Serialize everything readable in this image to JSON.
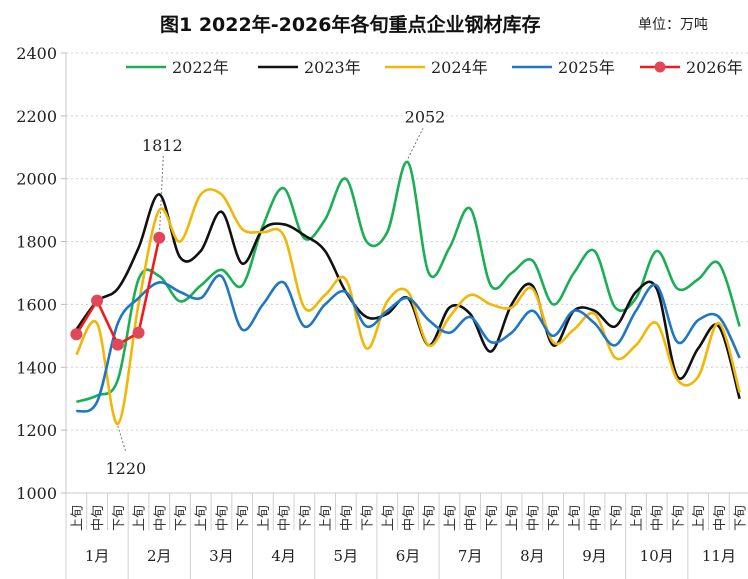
{
  "chart_data": {
    "type": "line",
    "title": "图1  2022年-2026年各旬重点企业钢材库存",
    "unit_label": "单位：万吨",
    "xlabel": "",
    "ylabel": "",
    "ylim": [
      1000,
      2400
    ],
    "yticks": [
      "1000",
      "1200",
      "1400",
      "1600",
      "1800",
      "2000",
      "2200",
      "2400"
    ],
    "grid": true,
    "legend_position": "top",
    "months": [
      "1月",
      "2月",
      "3月",
      "4月",
      "5月",
      "6月",
      "7月",
      "8月",
      "9月",
      "10月",
      "11月"
    ],
    "periods": [
      "上旬",
      "中旬",
      "下旬"
    ],
    "series": [
      {
        "name": "2022年",
        "color": "#1aaf54",
        "markers": false,
        "values": [
          1290,
          1310,
          1360,
          1680,
          1690,
          1610,
          1660,
          1710,
          1660,
          1850,
          1970,
          1810,
          1870,
          2000,
          1800,
          1830,
          2052,
          1700,
          1780,
          1905,
          1660,
          1700,
          1740,
          1600,
          1700,
          1770,
          1590,
          1620,
          1770,
          1650,
          1680,
          1730,
          1530
        ]
      },
      {
        "name": "2023年",
        "color": "#111111",
        "markers": false,
        "values": [
          1520,
          1610,
          1650,
          1780,
          1950,
          1750,
          1770,
          1895,
          1730,
          1840,
          1855,
          1820,
          1770,
          1640,
          1560,
          1570,
          1620,
          1470,
          1590,
          1570,
          1450,
          1600,
          1660,
          1470,
          1580,
          1580,
          1530,
          1640,
          1650,
          1370,
          1460,
          1530,
          1300
        ]
      },
      {
        "name": "2024年",
        "color": "#f2b705",
        "markers": false,
        "values": [
          1440,
          1540,
          1220,
          1600,
          1900,
          1800,
          1950,
          1950,
          1840,
          1830,
          1820,
          1590,
          1630,
          1680,
          1460,
          1610,
          1640,
          1470,
          1560,
          1630,
          1600,
          1590,
          1650,
          1480,
          1520,
          1570,
          1430,
          1470,
          1540,
          1360,
          1370,
          1540,
          1320
        ]
      },
      {
        "name": "2025年",
        "color": "#1f77c4",
        "markers": false,
        "values": [
          1260,
          1290,
          1540,
          1620,
          1670,
          1640,
          1620,
          1690,
          1520,
          1600,
          1670,
          1530,
          1600,
          1640,
          1530,
          1580,
          1620,
          1550,
          1510,
          1560,
          1480,
          1510,
          1580,
          1500,
          1580,
          1540,
          1470,
          1580,
          1660,
          1480,
          1550,
          1560,
          1430
        ]
      },
      {
        "name": "2026年",
        "color": "#ee1c1c",
        "marker_color": "#e0485a",
        "markers": true,
        "values": [
          1505,
          1612,
          1472,
          1510,
          1812
        ]
      }
    ],
    "annotations": [
      {
        "text": "1812",
        "series": "2026年",
        "index": 4,
        "value": 1812
      },
      {
        "text": "2052",
        "series": "2022年",
        "index": 16,
        "value": 2052
      },
      {
        "text": "1220",
        "series": "2024年",
        "index": 2,
        "value": 1220
      }
    ]
  }
}
